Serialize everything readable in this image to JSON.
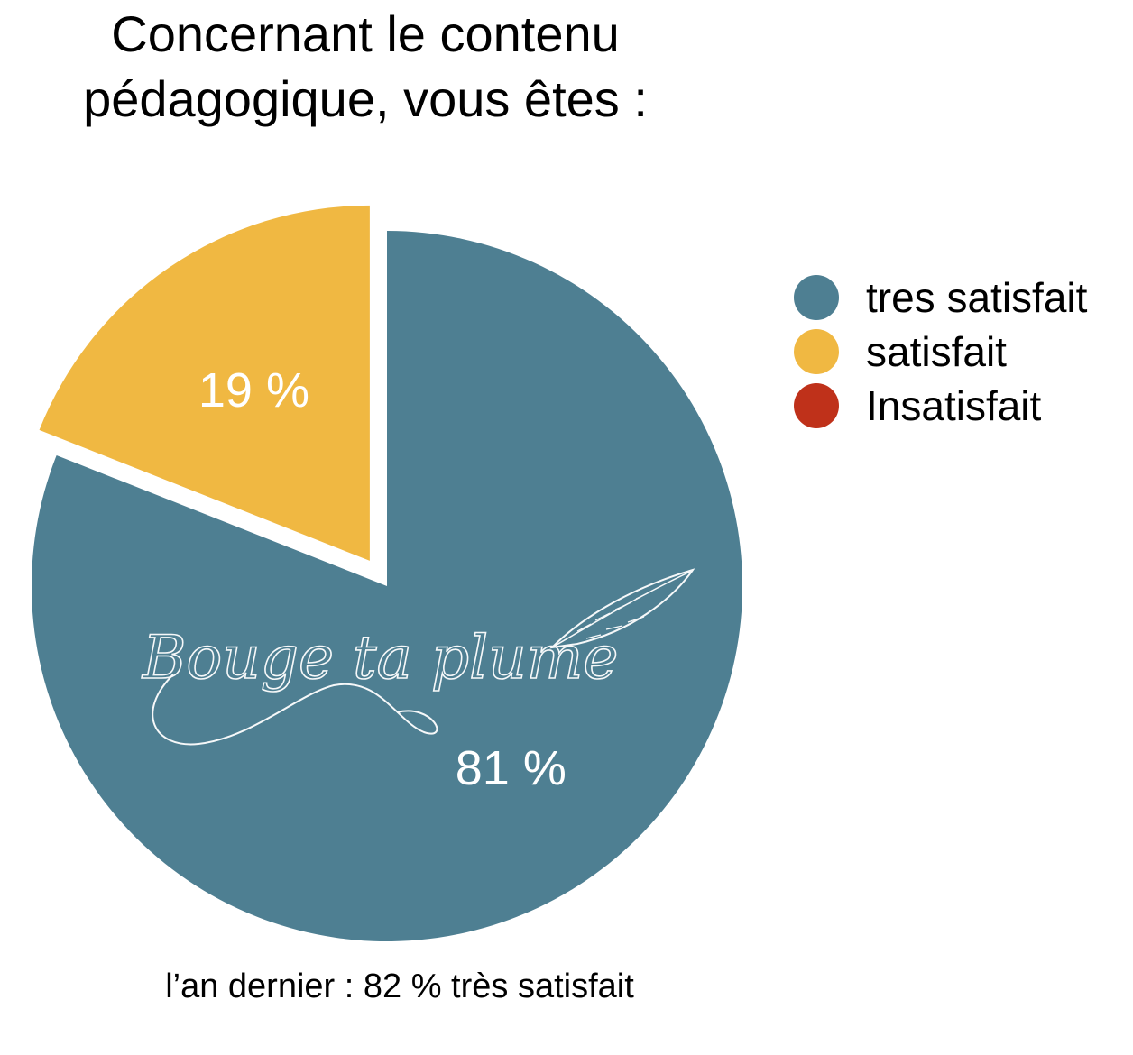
{
  "chart_data": {
    "type": "pie",
    "title_lines": [
      "Concernant le contenu",
      "pédagogique, vous êtes :"
    ],
    "slices": [
      {
        "name": "tres satisfait",
        "value": 81,
        "label": "81 %",
        "color": "#4e7f92",
        "exploded": false
      },
      {
        "name": "satisfait",
        "value": 19,
        "label": "19 %",
        "color": "#f0b842",
        "exploded": true
      },
      {
        "name": "Insatisfait",
        "value": 0,
        "label": "",
        "color": "#bf311a",
        "exploded": false
      }
    ],
    "legend": {
      "placement": "right",
      "entries": [
        {
          "label": "tres satisfait",
          "color": "#4e7f92"
        },
        {
          "label": "satisfait",
          "color": "#f0b842"
        },
        {
          "label": "Insatisfait",
          "color": "#bf311a"
        }
      ]
    },
    "footnote": "l’an dernier : 82 % très satisfait"
  },
  "watermark": {
    "text": "Bouge ta plume",
    "icon": "feather-icon"
  }
}
